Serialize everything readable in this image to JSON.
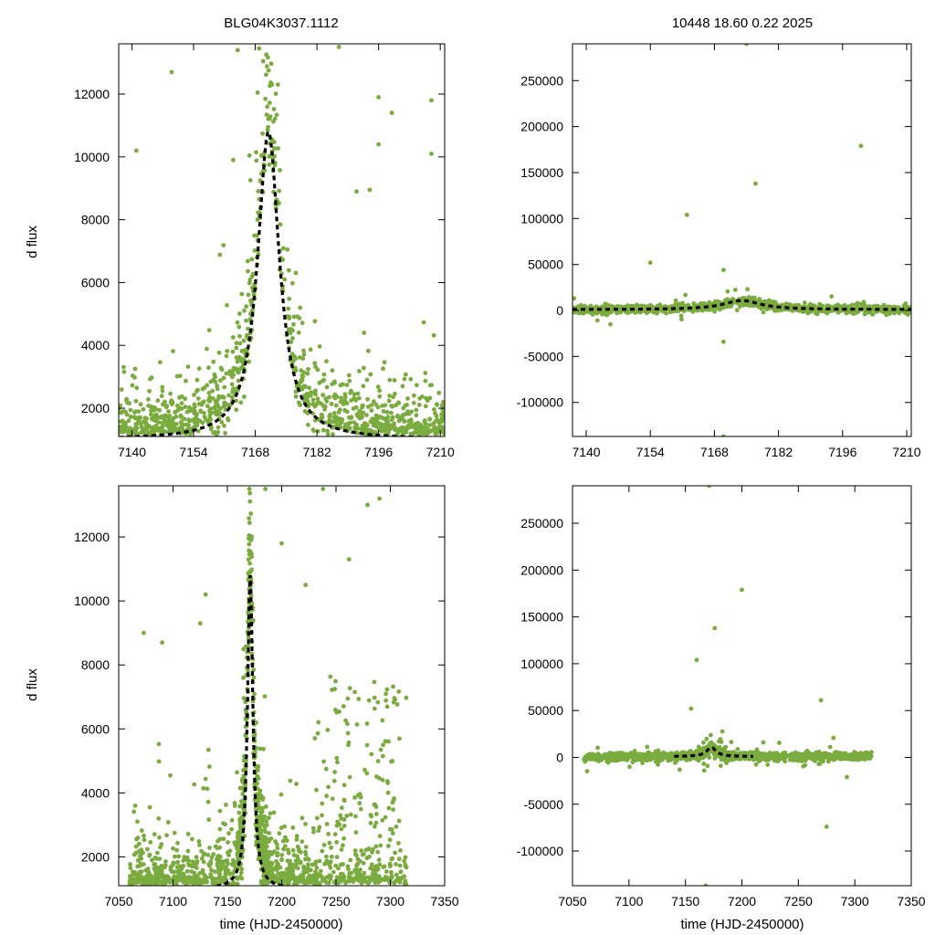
{
  "header": {
    "title_left": "BLG04K3037.1112",
    "title_right": "10448   18.60   0.22   2025"
  },
  "colors": {
    "points": "#7aab3e",
    "model": "#000000",
    "frame": "#000000"
  },
  "axes_text": {
    "ylabel": "d flux",
    "xlabel": "time (HJD-2450000)"
  },
  "chart_data": [
    {
      "id": "top-left",
      "type": "scatter",
      "title": "BLG04K3037.1112",
      "xlim": [
        7137,
        7211
      ],
      "ylim": [
        1100,
        13600
      ],
      "xticks": [
        7140,
        7154,
        7168,
        7182,
        7196,
        7210
      ],
      "yticks": [
        2000,
        4000,
        6000,
        8000,
        10000,
        12000
      ],
      "ylabel": "d flux",
      "xlabel": "",
      "model": {
        "t0": 7171,
        "tau": 3.0,
        "base": 1000,
        "amp": 9800,
        "style": "dashed"
      },
      "outliers": [
        [
          7141,
          10200
        ],
        [
          7149,
          12700
        ],
        [
          7163,
          9900
        ],
        [
          7164,
          13400
        ],
        [
          7187,
          13500
        ],
        [
          7191,
          8900
        ],
        [
          7194,
          8950
        ],
        [
          7196,
          11900
        ],
        [
          7196,
          10400
        ],
        [
          7199,
          11400
        ],
        [
          7208,
          11800
        ],
        [
          7208,
          10100
        ]
      ]
    },
    {
      "id": "top-right",
      "type": "scatter",
      "title": "10448   18.60   0.22   2025",
      "xlim": [
        7137,
        7211
      ],
      "ylim": [
        -137000,
        290000
      ],
      "xticks": [
        7140,
        7154,
        7168,
        7182,
        7196,
        7210
      ],
      "yticks": [
        -100000,
        -50000,
        0,
        50000,
        100000,
        150000,
        200000,
        250000
      ],
      "ylabel": "",
      "xlabel": "",
      "model": {
        "t0": 7174,
        "tau": 5.0,
        "base": 1000,
        "amp": 9800,
        "style": "dashed"
      },
      "outliers": [
        [
          7154,
          52000
        ],
        [
          7162,
          104000
        ],
        [
          7170,
          44000
        ],
        [
          7170,
          -34000
        ],
        [
          7175,
          290000
        ],
        [
          7177,
          138000
        ],
        [
          7200,
          179000
        ],
        [
          7170,
          -137000
        ]
      ]
    },
    {
      "id": "bottom-left",
      "type": "scatter",
      "title": "",
      "xlim": [
        7050,
        7350
      ],
      "ylim": [
        1100,
        13600
      ],
      "xticks": [
        7050,
        7100,
        7150,
        7200,
        7250,
        7300,
        7350
      ],
      "yticks": [
        2000,
        4000,
        6000,
        8000,
        10000,
        12000
      ],
      "ylabel": "d flux",
      "xlabel": "time (HJD-2450000)",
      "model": {
        "t0": 7171,
        "tau": 3.0,
        "base": 1000,
        "amp": 9800,
        "style": "dashed",
        "xrange": [
          7140,
          7210
        ]
      },
      "outliers": [
        [
          7073,
          9000
        ],
        [
          7090,
          8700
        ],
        [
          7125,
          9300
        ],
        [
          7130,
          10200
        ],
        [
          7185,
          13500
        ],
        [
          7200,
          11800
        ],
        [
          7222,
          10500
        ],
        [
          7238,
          13500
        ],
        [
          7262,
          11300
        ],
        [
          7279,
          13000
        ],
        [
          7290,
          13200
        ]
      ]
    },
    {
      "id": "bottom-right",
      "type": "scatter",
      "title": "",
      "xlim": [
        7050,
        7350
      ],
      "ylim": [
        -137000,
        290000
      ],
      "xticks": [
        7050,
        7100,
        7150,
        7200,
        7250,
        7300,
        7350
      ],
      "yticks": [
        -100000,
        -50000,
        0,
        50000,
        100000,
        150000,
        200000,
        250000
      ],
      "ylabel": "",
      "xlabel": "time (HJD-2450000)",
      "model": {
        "t0": 7173,
        "tau": 5.0,
        "base": 1000,
        "amp": 9800,
        "style": "dashed",
        "xrange": [
          7140,
          7210
        ]
      },
      "outliers": [
        [
          7155,
          52000
        ],
        [
          7160,
          104000
        ],
        [
          7171,
          290000
        ],
        [
          7176,
          138000
        ],
        [
          7200,
          179000
        ],
        [
          7270,
          61000
        ],
        [
          7275,
          -74000
        ],
        [
          7168,
          -137000
        ]
      ]
    }
  ]
}
